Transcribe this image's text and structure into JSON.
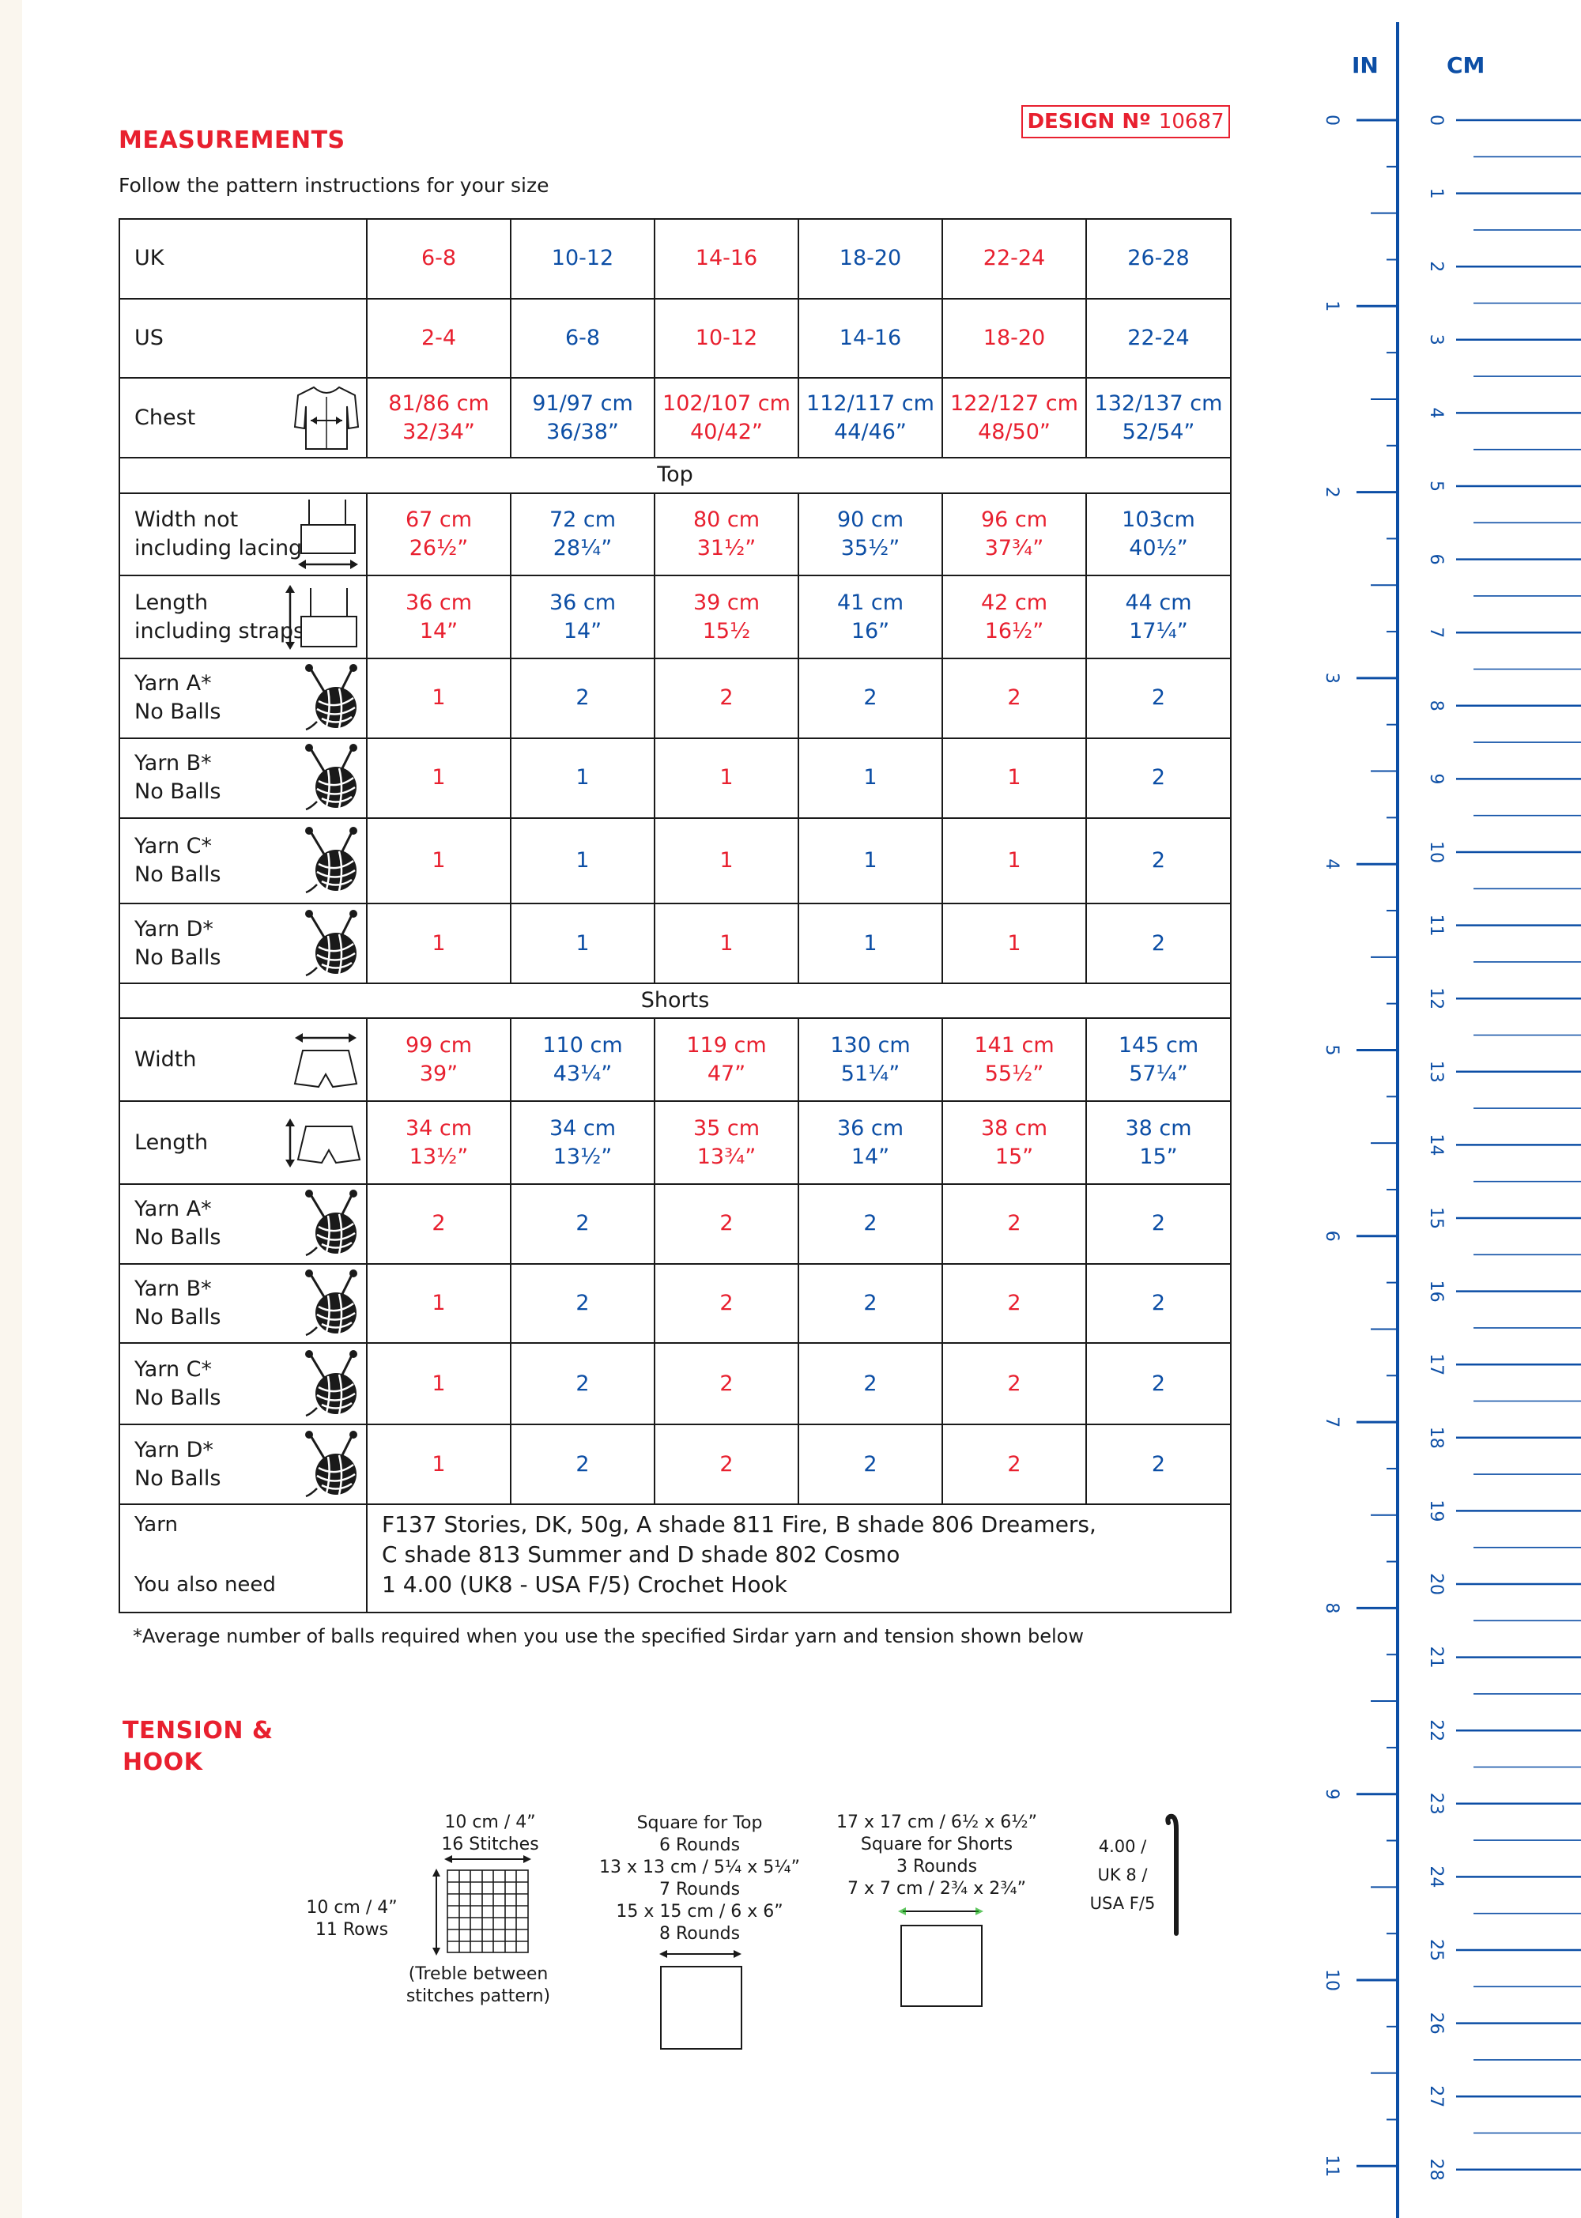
{
  "measurements_title": "MEASUREMENTS",
  "design": {
    "label": "DESIGN Nº",
    "number": "10687"
  },
  "intro": "Follow the pattern instructions for your size",
  "rows": {
    "uk": {
      "label": "UK",
      "values": [
        "6-8",
        "10-12",
        "14-16",
        "18-20",
        "22-24",
        "26-28"
      ]
    },
    "us": {
      "label": "US",
      "values": [
        "2-4",
        "6-8",
        "10-12",
        "14-16",
        "18-20",
        "22-24"
      ]
    },
    "chest": {
      "label": "Chest",
      "icon": "cardigan-icon",
      "cm": [
        "81/86 cm",
        "91/97 cm",
        "102/107 cm",
        "112/117 cm",
        "122/127 cm",
        "132/137 cm"
      ],
      "in": [
        "32/34”",
        "36/38”",
        "40/42”",
        "44/46”",
        "48/50”",
        "52/54”"
      ]
    },
    "top_section": "Top",
    "top_width": {
      "label1": "Width not",
      "label2": "including lacing",
      "icon": "top-width-icon",
      "cm": [
        "67 cm",
        "72 cm",
        "80 cm",
        "90 cm",
        "96 cm",
        "103cm"
      ],
      "in": [
        "26½”",
        "28¼”",
        "31½”",
        "35½”",
        "37¾”",
        "40½”"
      ]
    },
    "top_length": {
      "label1": "Length",
      "label2": "including straps",
      "icon": "top-length-icon",
      "cm": [
        "36 cm",
        "36 cm",
        "39 cm",
        "41 cm",
        "42 cm",
        "44 cm"
      ],
      "in": [
        "14”",
        "14”",
        "15½",
        "16”",
        "16½”",
        "17¼”"
      ]
    },
    "top_yarns": [
      {
        "label1": "Yarn A*",
        "label2": "No Balls",
        "values": [
          "1",
          "2",
          "2",
          "2",
          "2",
          "2"
        ]
      },
      {
        "label1": "Yarn B*",
        "label2": "No Balls",
        "values": [
          "1",
          "1",
          "1",
          "1",
          "1",
          "2"
        ]
      },
      {
        "label1": "Yarn C*",
        "label2": "No Balls",
        "values": [
          "1",
          "1",
          "1",
          "1",
          "1",
          "2"
        ]
      },
      {
        "label1": "Yarn D*",
        "label2": "No Balls",
        "values": [
          "1",
          "1",
          "1",
          "1",
          "1",
          "2"
        ]
      }
    ],
    "shorts_section": "Shorts",
    "shorts_width": {
      "label": "Width",
      "icon": "shorts-width-icon",
      "cm": [
        "99 cm",
        "110 cm",
        "119 cm",
        "130 cm",
        "141 cm",
        "145 cm"
      ],
      "in": [
        "39”",
        "43¼”",
        "47”",
        "51¼”",
        "55½”",
        "57¼”"
      ]
    },
    "shorts_length": {
      "label": "Length",
      "icon": "shorts-length-icon",
      "cm": [
        "34 cm",
        "34 cm",
        "35 cm",
        "36 cm",
        "38 cm",
        "38 cm"
      ],
      "in": [
        "13½”",
        "13½”",
        "13¾”",
        "14”",
        "15”",
        "15”"
      ]
    },
    "shorts_yarns": [
      {
        "label1": "Yarn A*",
        "label2": "No Balls",
        "values": [
          "2",
          "2",
          "2",
          "2",
          "2",
          "2"
        ]
      },
      {
        "label1": "Yarn B*",
        "label2": "No Balls",
        "values": [
          "1",
          "2",
          "2",
          "2",
          "2",
          "2"
        ]
      },
      {
        "label1": "Yarn C*",
        "label2": "No Balls",
        "values": [
          "1",
          "2",
          "2",
          "2",
          "2",
          "2"
        ]
      },
      {
        "label1": "Yarn D*",
        "label2": "No Balls",
        "values": [
          "1",
          "2",
          "2",
          "2",
          "2",
          "2"
        ]
      }
    ],
    "yarn_label": "Yarn",
    "yarn_text1": "F137 Stories, DK, 50g, A shade 811 Fire, B shade 806 Dreamers,",
    "yarn_text2": "C shade 813 Summer and D shade 802 Cosmo",
    "also_label": "You also need",
    "also_text": "1 4.00 (UK8 - USA F/5) Crochet Hook"
  },
  "footnote": "*Average number of balls required when you use the specified Sirdar yarn and tension shown below",
  "tension": {
    "title1": "TENSION &",
    "title2": "HOOK",
    "swatch_width": "10 cm / 4”",
    "swatch_stitches": "16 Stitches",
    "swatch_height": "10 cm / 4”",
    "swatch_rows": "11 Rows",
    "swatch_note1": "(Treble between",
    "swatch_note2": "stitches pattern)",
    "top_square": [
      "Square for Top",
      "6 Rounds",
      "13 x 13 cm / 5¼ x 5¼”",
      "7 Rounds",
      "15 x 15 cm / 6 x 6”",
      "8 Rounds"
    ],
    "shorts_square": [
      "17 x 17 cm / 6½ x 6½”",
      "Square for Shorts",
      "3 Rounds",
      "7 x 7 cm / 2¾ x 2¾”"
    ],
    "hook": [
      "4.00 /",
      "UK 8 /",
      "USA F/5"
    ]
  },
  "ruler": {
    "in_label": "IN",
    "cm_label": "CM",
    "inches": [
      "0",
      "1",
      "2",
      "3",
      "4",
      "5",
      "6",
      "7",
      "8",
      "9",
      "10",
      "11"
    ],
    "cms": [
      "0",
      "1",
      "2",
      "3",
      "4",
      "5",
      "6",
      "7",
      "8",
      "9",
      "10",
      "11",
      "12",
      "13",
      "14",
      "15",
      "16",
      "17",
      "18",
      "19",
      "20",
      "21",
      "22",
      "23",
      "24",
      "25",
      "26",
      "27",
      "28"
    ],
    "color": "#0c4ea5"
  },
  "colors": {
    "red": "#e8202f",
    "blue": "#0c4ea5"
  }
}
